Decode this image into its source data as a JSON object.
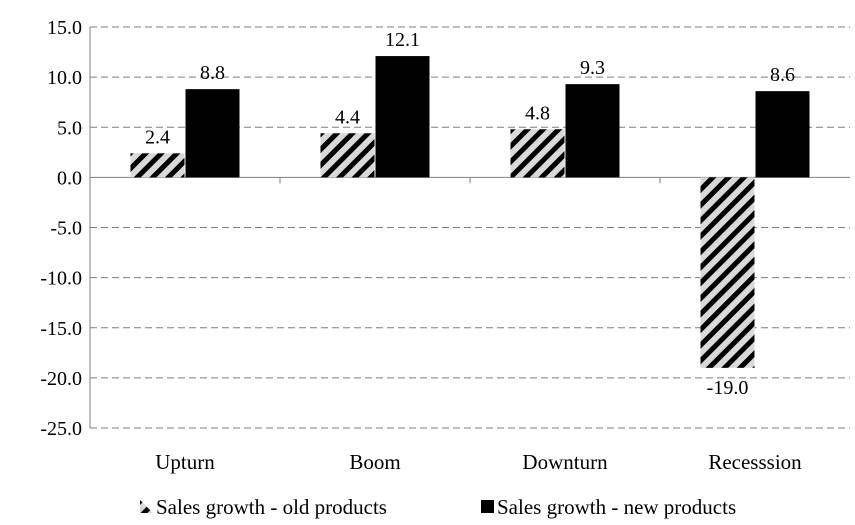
{
  "chart_data": {
    "type": "bar",
    "categories": [
      "Upturn",
      "Boom",
      "Downturn",
      "Recesssion"
    ],
    "series": [
      {
        "name": "Sales growth - old products",
        "values": [
          2.4,
          4.4,
          4.8,
          -19.0
        ],
        "labels": [
          "2.4",
          "4.4",
          "4.8",
          "-19.0"
        ],
        "pattern": "diagonal-stripes",
        "color": "#000000"
      },
      {
        "name": "Sales growth - new products",
        "values": [
          8.8,
          12.1,
          9.3,
          8.6
        ],
        "labels": [
          "8.8",
          "12.1",
          "9.3",
          "8.6"
        ],
        "pattern": "solid",
        "color": "#000000"
      }
    ],
    "ylim": [
      -25,
      15
    ],
    "yticks": [
      15,
      10,
      5,
      0,
      -5,
      -10,
      -15,
      -20,
      -25
    ],
    "ytick_labels": [
      "15.0",
      "10.0",
      "5.0",
      "0.0",
      "-5.0",
      "-10.0",
      "-15.0",
      "-20.0",
      "-25.0"
    ],
    "grid": "horizontal-dashed",
    "legend_position": "bottom",
    "title": "",
    "xlabel": "",
    "ylabel": ""
  }
}
